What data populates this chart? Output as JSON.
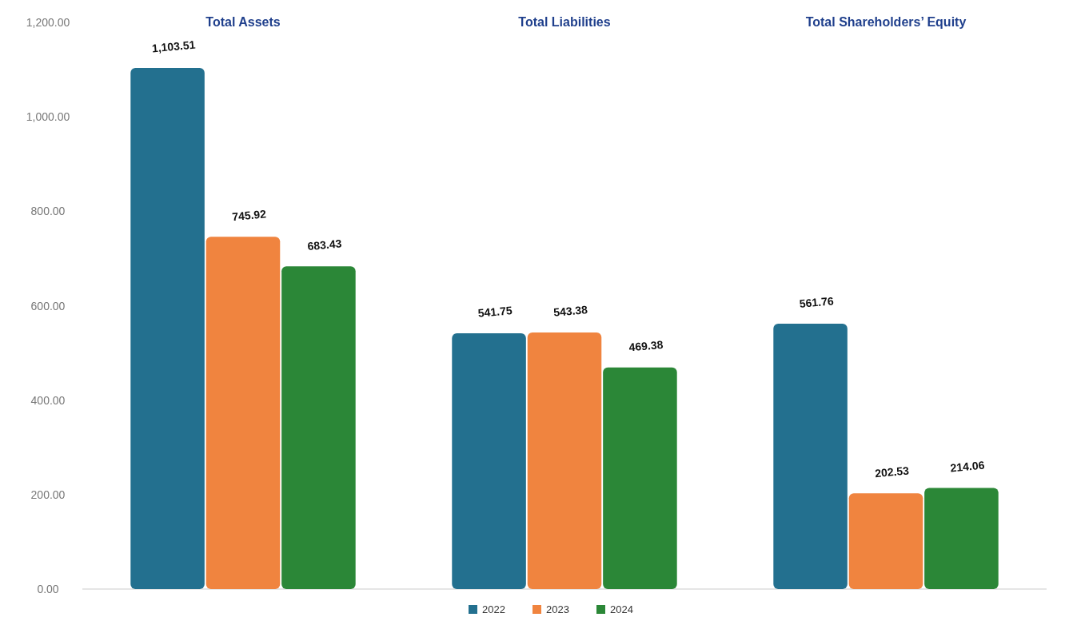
{
  "chart_data": {
    "type": "bar",
    "categories": [
      "Total Assets",
      "Total Liabilities",
      "Total Shareholders’ Equity"
    ],
    "series": [
      {
        "name": "2022",
        "color": "#23708f",
        "values": [
          1103.51,
          541.75,
          561.76
        ],
        "value_labels": [
          "1,103.51",
          "541.75",
          "561.76"
        ]
      },
      {
        "name": "2023",
        "color": "#f0843f",
        "values": [
          745.92,
          543.38,
          202.53
        ],
        "value_labels": [
          "745.92",
          "543.38",
          "202.53"
        ]
      },
      {
        "name": "2024",
        "color": "#2b8737",
        "values": [
          683.43,
          469.38,
          214.06
        ],
        "value_labels": [
          "683.43",
          "469.38",
          "214.06"
        ]
      }
    ],
    "ylim": [
      0,
      1200
    ],
    "yticks": [
      {
        "value": 0,
        "label": "0.00"
      },
      {
        "value": 200,
        "label": "200.00"
      },
      {
        "value": 400,
        "label": "400.00"
      },
      {
        "value": 600,
        "label": "600.00"
      },
      {
        "value": 800,
        "label": "800.00"
      },
      {
        "value": 1000,
        "label": "1,000.00"
      },
      {
        "value": 1200,
        "label": "1,200.00"
      }
    ],
    "grid": false,
    "legend": "bottom"
  }
}
